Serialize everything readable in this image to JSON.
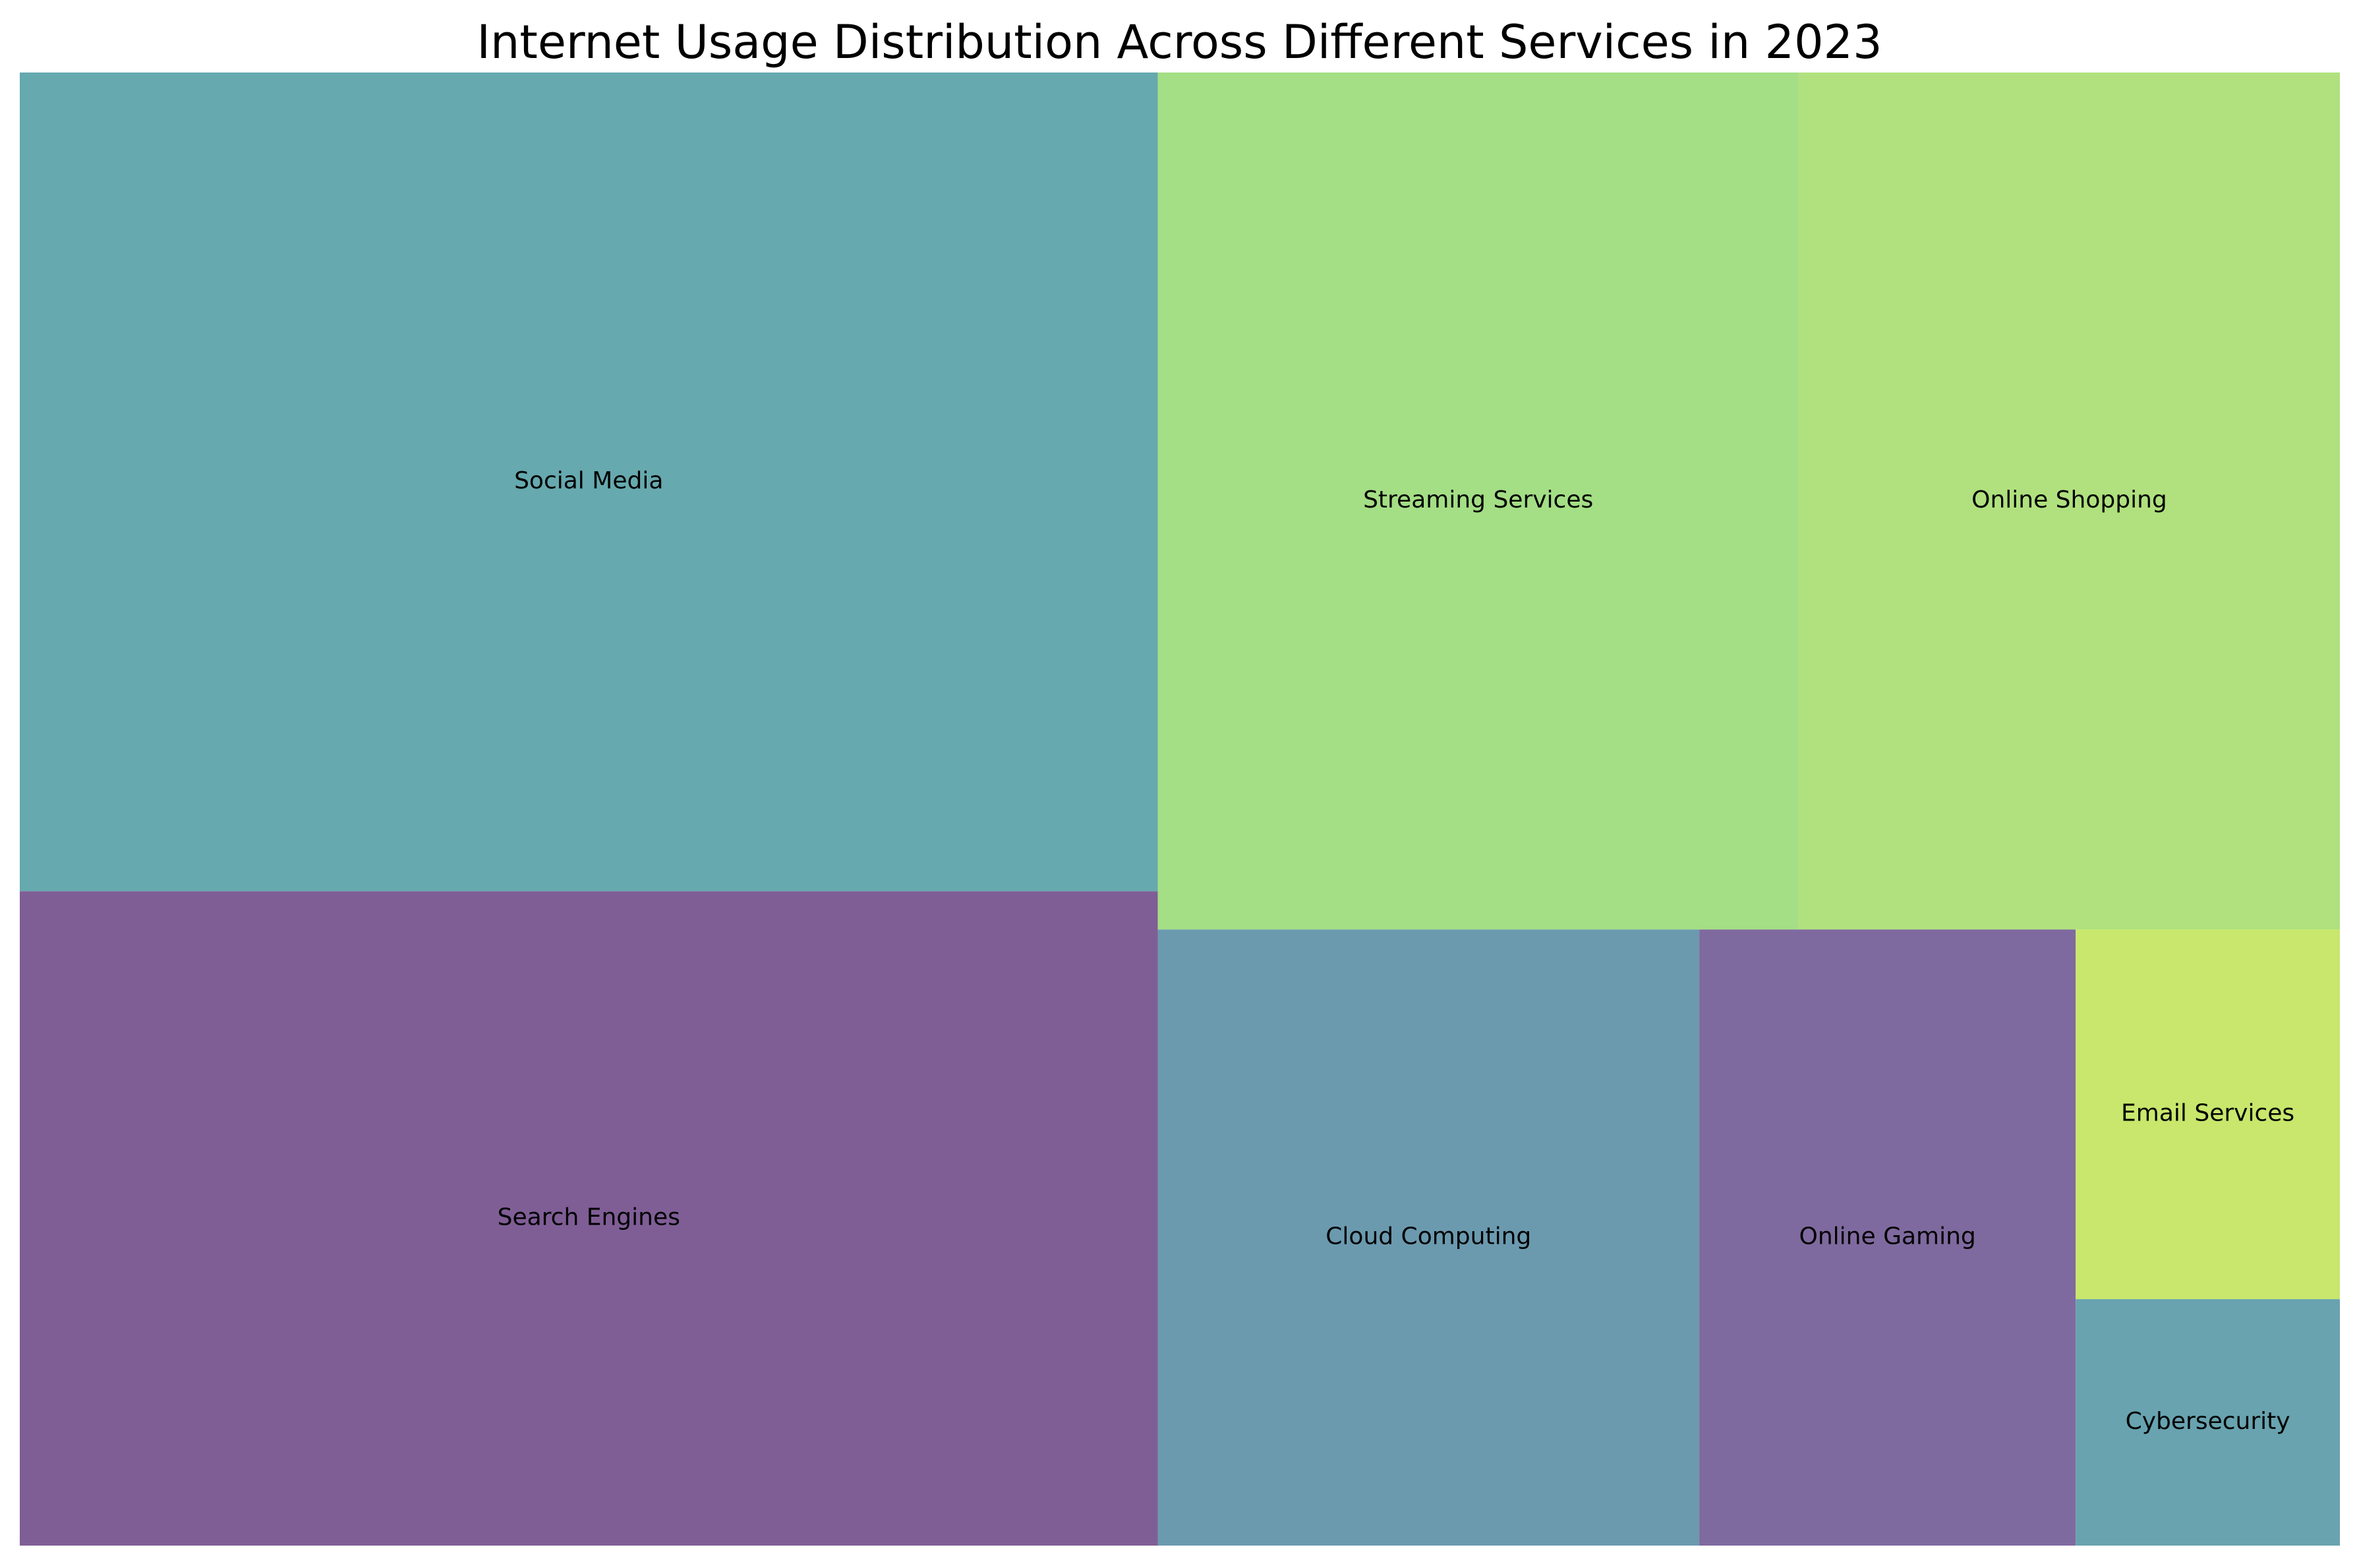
{
  "chart_data": {
    "type": "treemap",
    "title": "Internet Usage Distribution Across Different Services in 2023",
    "items": [
      {
        "label": "Social Media",
        "value": 22.9,
        "color": "#66a9ae"
      },
      {
        "label": "Search Engines",
        "value": 18.3,
        "color": "#7f5e96"
      },
      {
        "label": "Streaming Services",
        "value": 13.5,
        "color": "#a4de85"
      },
      {
        "label": "Online Shopping",
        "value": 11.4,
        "color": "#b0e17e"
      },
      {
        "label": "Cloud Computing",
        "value": 8.2,
        "color": "#6b9aaf"
      },
      {
        "label": "Online Gaming",
        "value": 5.7,
        "color": "#7f6a9f"
      },
      {
        "label": "Email Services",
        "value": 2.4,
        "color": "#c8e76c"
      },
      {
        "label": "Cybersecurity",
        "value": 1.6,
        "color": "#68a3af"
      }
    ],
    "grid": false,
    "legend": "none"
  }
}
